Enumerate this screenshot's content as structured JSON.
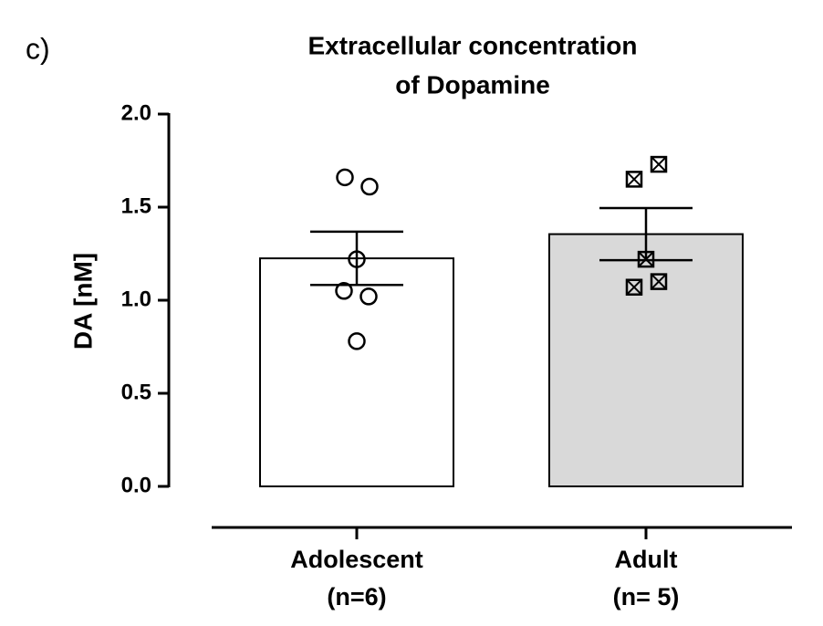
{
  "chart_data": {
    "type": "bar",
    "panel_label": "c)",
    "title": [
      "Extracellular concentration",
      "of Dopamine"
    ],
    "ylabel": "DA [nM]",
    "categories": [
      "Adolescent",
      "Adult"
    ],
    "category_notes": [
      "(n=6)",
      "(n= 5)"
    ],
    "values": [
      1.225,
      1.355
    ],
    "errors": [
      0.143,
      0.14
    ],
    "colors": [
      "#ffffff",
      "#d9d9d9"
    ],
    "points": [
      [
        1.66,
        1.61,
        1.22,
        1.05,
        1.02,
        0.78
      ],
      [
        1.73,
        1.65,
        1.22,
        1.1,
        1.07
      ]
    ],
    "markers": [
      "circle",
      "square-x"
    ],
    "ylim": [
      0,
      2
    ],
    "yticks": [
      {
        "value": 0,
        "label": "0.0"
      },
      {
        "value": 0.5,
        "label": "0.5"
      },
      {
        "value": 1,
        "label": "1.0"
      },
      {
        "value": 1.5,
        "label": "1.5"
      },
      {
        "value": 2,
        "label": "2.0"
      }
    ]
  }
}
